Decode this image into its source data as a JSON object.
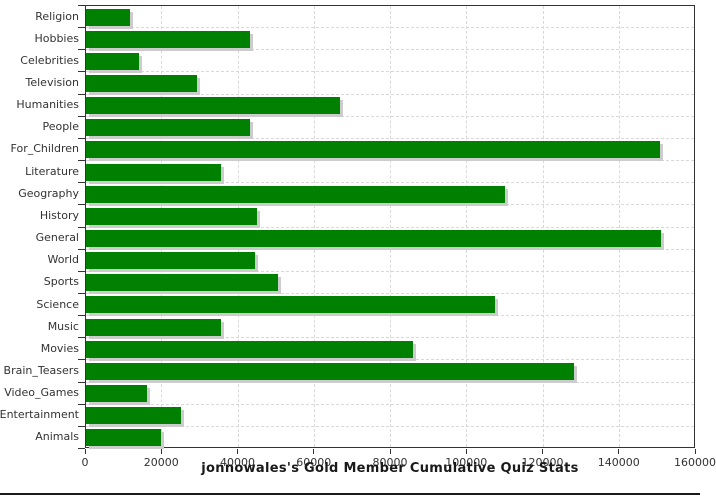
{
  "chart_data": {
    "type": "bar",
    "orientation": "horizontal",
    "title": "jonnowales's Gold Member Cumulative Quiz Stats",
    "categories": [
      "Religion",
      "Hobbies",
      "Celebrities",
      "Television",
      "Humanities",
      "People",
      "For_Children",
      "Literature",
      "Geography",
      "History",
      "General",
      "World",
      "Sports",
      "Science",
      "Music",
      "Movies",
      "Brain_Teasers",
      "Video_Games",
      "Entertainment",
      "Animals"
    ],
    "values": [
      11500,
      43000,
      14000,
      29000,
      66500,
      43000,
      150500,
      35500,
      110000,
      44800,
      150700,
      44400,
      50300,
      107300,
      35500,
      85700,
      128000,
      16000,
      25000,
      19800
    ],
    "xlabel": "",
    "ylabel": "",
    "xlim": [
      0,
      160000
    ],
    "x_tick_values": [
      0,
      20000,
      40000,
      60000,
      80000,
      100000,
      120000,
      140000,
      160000
    ],
    "x_tick_labels": [
      "0",
      "20000",
      "40000",
      "60000",
      "80000",
      "100000",
      "120000",
      "140000",
      "160000"
    ],
    "grid": "dashed-both-axes",
    "legend": "none",
    "colors": {
      "bar_fill": "#008000",
      "bar_shadow": "#cccccc",
      "gridline": "#d9d9d9",
      "axis_line": "#333333",
      "tick_label": "#333333",
      "title_text": "#1a1a1a"
    }
  }
}
